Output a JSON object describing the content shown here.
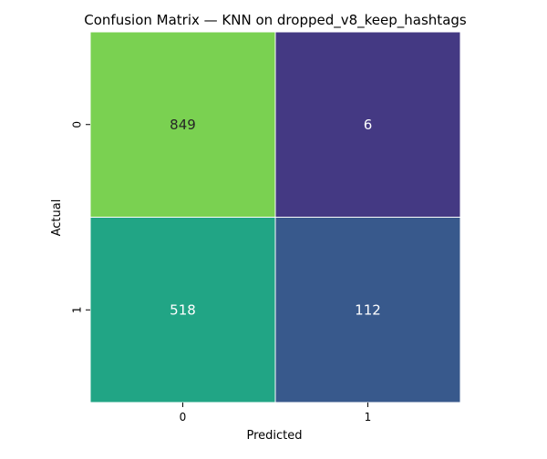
{
  "chart_data": {
    "type": "heatmap",
    "title": "Confusion Matrix — KNN on dropped_v8_keep_hashtags",
    "xlabel": "Predicted",
    "ylabel": "Actual",
    "x_categories": [
      "0",
      "1"
    ],
    "y_categories": [
      "0",
      "1"
    ],
    "values": [
      [
        849,
        6
      ],
      [
        518,
        112
      ]
    ],
    "cell_colors": [
      [
        "#7ad151",
        "#443983"
      ],
      [
        "#21a585",
        "#38598c"
      ]
    ],
    "label_colors": [
      [
        "#262626",
        "#ffffff"
      ],
      [
        "#ffffff",
        "#ffffff"
      ]
    ],
    "colorbar": false
  }
}
